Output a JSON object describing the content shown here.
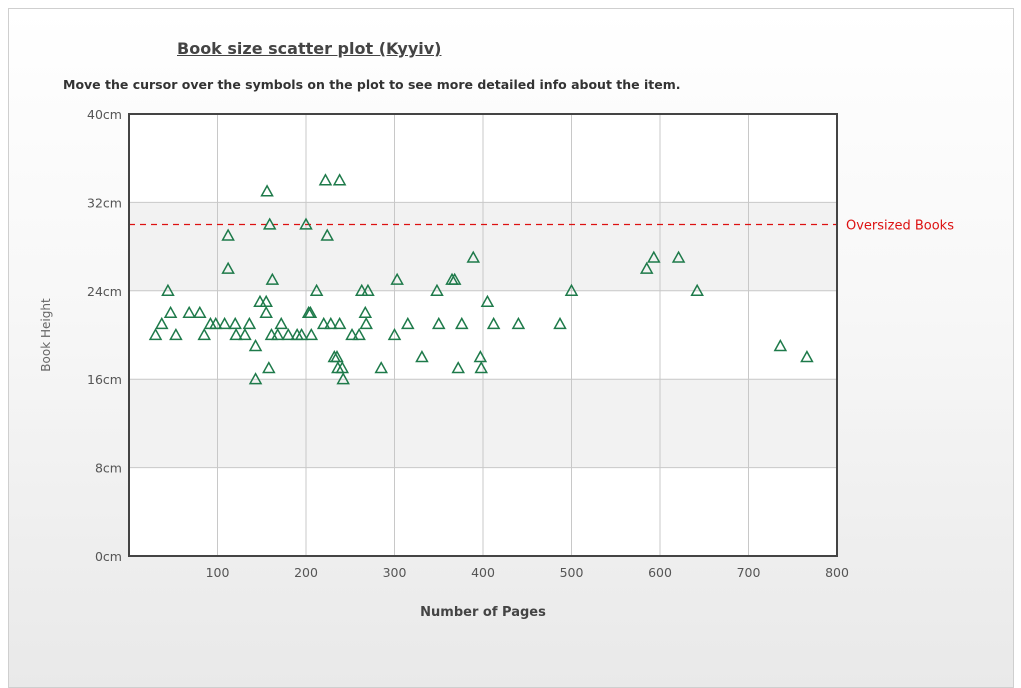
{
  "chart_data": {
    "type": "scatter",
    "title": "Book size scatter plot (Kyyiv)",
    "subtitle": "Move the cursor over the symbols on the plot to see more detailed info about the item.",
    "xlabel": "Number of Pages",
    "ylabel": "Book Height",
    "xlim": [
      0,
      800
    ],
    "ylim": [
      0,
      40
    ],
    "x_ticks": [
      {
        "value": 100,
        "label": "100"
      },
      {
        "value": 200,
        "label": "200"
      },
      {
        "value": 300,
        "label": "300"
      },
      {
        "value": 400,
        "label": "400"
      },
      {
        "value": 500,
        "label": "500"
      },
      {
        "value": 600,
        "label": "600"
      },
      {
        "value": 700,
        "label": "700"
      },
      {
        "value": 800,
        "label": "800"
      }
    ],
    "y_ticks": [
      {
        "value": 0,
        "label": "0cm"
      },
      {
        "value": 8,
        "label": "8cm"
      },
      {
        "value": 16,
        "label": "16cm"
      },
      {
        "value": 24,
        "label": "24cm"
      },
      {
        "value": 32,
        "label": "32cm"
      },
      {
        "value": 40,
        "label": "40cm"
      }
    ],
    "grid": true,
    "reference_line": {
      "y": 30,
      "label": "Oversized Books",
      "color": "#dd1111",
      "style": "dashed"
    },
    "marker": {
      "shape": "triangle",
      "color": "#1e7a4a"
    },
    "colors": {
      "band_light": "#f2f2f2",
      "band_white": "#ffffff",
      "grid": "#c8c8c8",
      "frame": "#444444"
    },
    "points": [
      {
        "x": 30,
        "y": 20
      },
      {
        "x": 37,
        "y": 21
      },
      {
        "x": 44,
        "y": 24
      },
      {
        "x": 47,
        "y": 22
      },
      {
        "x": 53,
        "y": 20
      },
      {
        "x": 68,
        "y": 22
      },
      {
        "x": 80,
        "y": 22
      },
      {
        "x": 85,
        "y": 20
      },
      {
        "x": 92,
        "y": 21
      },
      {
        "x": 98,
        "y": 21
      },
      {
        "x": 108,
        "y": 21
      },
      {
        "x": 112,
        "y": 29
      },
      {
        "x": 112,
        "y": 26
      },
      {
        "x": 120,
        "y": 21
      },
      {
        "x": 121,
        "y": 20
      },
      {
        "x": 131,
        "y": 20
      },
      {
        "x": 136,
        "y": 21
      },
      {
        "x": 143,
        "y": 19
      },
      {
        "x": 143,
        "y": 16
      },
      {
        "x": 148,
        "y": 23
      },
      {
        "x": 155,
        "y": 23
      },
      {
        "x": 155,
        "y": 22
      },
      {
        "x": 156,
        "y": 33
      },
      {
        "x": 158,
        "y": 17
      },
      {
        "x": 159,
        "y": 30
      },
      {
        "x": 161,
        "y": 20
      },
      {
        "x": 162,
        "y": 25
      },
      {
        "x": 168,
        "y": 20
      },
      {
        "x": 172,
        "y": 21
      },
      {
        "x": 180,
        "y": 20
      },
      {
        "x": 190,
        "y": 20
      },
      {
        "x": 195,
        "y": 20
      },
      {
        "x": 200,
        "y": 30
      },
      {
        "x": 203,
        "y": 22
      },
      {
        "x": 205,
        "y": 22
      },
      {
        "x": 206,
        "y": 20
      },
      {
        "x": 212,
        "y": 24
      },
      {
        "x": 220,
        "y": 21
      },
      {
        "x": 222,
        "y": 34
      },
      {
        "x": 224,
        "y": 29
      },
      {
        "x": 228,
        "y": 21
      },
      {
        "x": 232,
        "y": 18
      },
      {
        "x": 235,
        "y": 18
      },
      {
        "x": 236,
        "y": 17
      },
      {
        "x": 238,
        "y": 34
      },
      {
        "x": 238,
        "y": 21
      },
      {
        "x": 241,
        "y": 17
      },
      {
        "x": 242,
        "y": 16
      },
      {
        "x": 252,
        "y": 20
      },
      {
        "x": 260,
        "y": 20
      },
      {
        "x": 263,
        "y": 24
      },
      {
        "x": 267,
        "y": 22
      },
      {
        "x": 268,
        "y": 21
      },
      {
        "x": 270,
        "y": 24
      },
      {
        "x": 285,
        "y": 17
      },
      {
        "x": 300,
        "y": 20
      },
      {
        "x": 303,
        "y": 25
      },
      {
        "x": 315,
        "y": 21
      },
      {
        "x": 331,
        "y": 18
      },
      {
        "x": 348,
        "y": 24
      },
      {
        "x": 350,
        "y": 21
      },
      {
        "x": 365,
        "y": 25
      },
      {
        "x": 368,
        "y": 25
      },
      {
        "x": 372,
        "y": 17
      },
      {
        "x": 376,
        "y": 21
      },
      {
        "x": 389,
        "y": 27
      },
      {
        "x": 397,
        "y": 18
      },
      {
        "x": 398,
        "y": 17
      },
      {
        "x": 405,
        "y": 23
      },
      {
        "x": 412,
        "y": 21
      },
      {
        "x": 440,
        "y": 21
      },
      {
        "x": 487,
        "y": 21
      },
      {
        "x": 500,
        "y": 24
      },
      {
        "x": 585,
        "y": 26
      },
      {
        "x": 593,
        "y": 27
      },
      {
        "x": 621,
        "y": 27
      },
      {
        "x": 642,
        "y": 24
      },
      {
        "x": 736,
        "y": 19
      },
      {
        "x": 766,
        "y": 18
      }
    ]
  }
}
